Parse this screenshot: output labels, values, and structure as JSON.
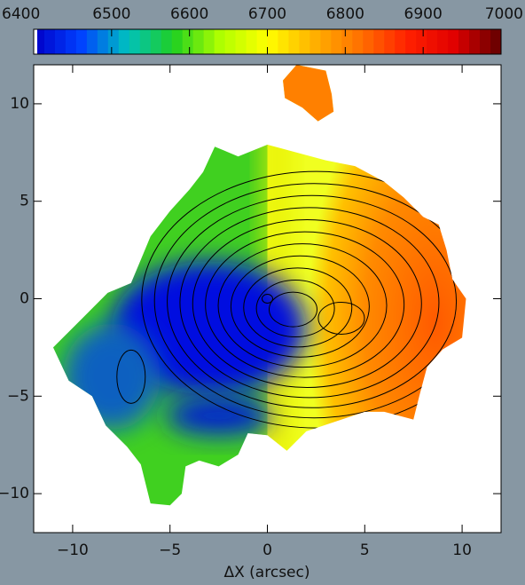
{
  "chart_data": {
    "type": "velocity-map",
    "xlabel": "ΔX (arcsec)",
    "xlim": [
      -12,
      12
    ],
    "ylim": [
      -12,
      12
    ],
    "xticks": [
      {
        "value": -10,
        "label": "−10"
      },
      {
        "value": -5,
        "label": "−5"
      },
      0,
      5,
      10
    ],
    "yticks": [
      {
        "value": -10,
        "label": "−10"
      },
      {
        "value": -5,
        "label": "−5"
      },
      0,
      5,
      10
    ],
    "colorbar": {
      "lim": [
        6400,
        7000
      ],
      "ticks": [
        6400,
        6500,
        6600,
        6700,
        6800,
        6900,
        7000
      ],
      "colors": [
        "#0000c8",
        "#0040ff",
        "#00c0c0",
        "#20d020",
        "#b0ff00",
        "#ffff00",
        "#ffb000",
        "#ff7000",
        "#ff2000",
        "#e00000",
        "#600000"
      ]
    }
  }
}
